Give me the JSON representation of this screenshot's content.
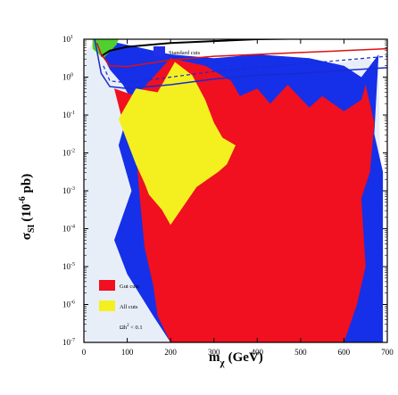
{
  "chart_data": {
    "type": "area",
    "x_axis": {
      "label_main": "m",
      "label_sub": "χ",
      "label_unit": "(GeV)",
      "range": [
        0,
        700
      ],
      "ticks": [
        0,
        100,
        200,
        300,
        400,
        500,
        600,
        700
      ],
      "tick_labels": [
        "0",
        "100",
        "200",
        "300",
        "400",
        "500",
        "600",
        "700"
      ]
    },
    "y_axis": {
      "label_main": "σ",
      "label_sub": "SI",
      "label_paren": "(10",
      "label_sup": "-6",
      "label_unit": " pb)",
      "scale": "log10",
      "range": [
        -7,
        1
      ],
      "ticks": [
        1,
        0,
        -1,
        -2,
        -3,
        -4,
        -5,
        -6,
        -7
      ],
      "tick_labels": [
        {
          "base": "10",
          "exp": "1"
        },
        {
          "base": "10",
          "exp": "0"
        },
        {
          "base": "10",
          "exp": "-1"
        },
        {
          "base": "10",
          "exp": "-2"
        },
        {
          "base": "10",
          "exp": "-3"
        },
        {
          "base": "10",
          "exp": "-4"
        },
        {
          "base": "10",
          "exp": "-5"
        },
        {
          "base": "10",
          "exp": "-6"
        },
        {
          "base": "10",
          "exp": "-7"
        }
      ]
    },
    "legend": {
      "upper": {
        "placement": "top-right",
        "entries": [
          {
            "label": "Standard cuts",
            "color": "#2030e8"
          }
        ]
      },
      "lower": {
        "placement": "bottom-left",
        "entries": [
          {
            "label": "Gut cuts",
            "color": "#f01020"
          },
          {
            "label": "All cuts",
            "color": "#f4f020"
          },
          {
            "label_main": "Ωh",
            "label_sup": "2",
            "label_rest": " < 0.1",
            "color": "#e8eef8"
          }
        ]
      }
    },
    "colors": {
      "light_region": "#e8eef8",
      "blue_region": "#1530e8",
      "red_region": "#f01020",
      "yellow_region": "#f4f020",
      "green_region": "#50d030",
      "black_curve": "#000000",
      "red_curve": "#e01010",
      "blue_curve": "#1a2ad0",
      "dashed_curve": "#1a2ad0"
    },
    "regions": {
      "light": [
        [
          0,
          -7
        ],
        [
          0,
          0.6
        ],
        [
          20,
          0.9
        ],
        [
          60,
          0.8
        ],
        [
          120,
          0.5
        ],
        [
          200,
          0.4
        ],
        [
          300,
          0.3
        ],
        [
          350,
          0.4
        ],
        [
          400,
          0.2
        ],
        [
          500,
          0.3
        ],
        [
          600,
          0.4
        ],
        [
          650,
          0.5
        ],
        [
          680,
          0.3
        ],
        [
          690,
          -7
        ]
      ],
      "blue": [
        [
          25,
          1
        ],
        [
          60,
          0.2
        ],
        [
          90,
          -0.2
        ],
        [
          110,
          -0.6
        ],
        [
          80,
          -1.8
        ],
        [
          110,
          -3
        ],
        [
          70,
          -4.3
        ],
        [
          100,
          -5.2
        ],
        [
          160,
          -6.3
        ],
        [
          200,
          -7
        ],
        [
          690,
          -7
        ],
        [
          690,
          -2.5
        ],
        [
          670,
          -1.5
        ],
        [
          680,
          0.6
        ],
        [
          640,
          0
        ],
        [
          600,
          0.3
        ],
        [
          520,
          0.5
        ],
        [
          400,
          0.6
        ],
        [
          300,
          0.5
        ],
        [
          200,
          0.6
        ],
        [
          120,
          0.8
        ],
        [
          80,
          0.9
        ]
      ],
      "red": [
        [
          70,
          -0.3
        ],
        [
          120,
          -0.5
        ],
        [
          200,
          0.5
        ],
        [
          280,
          0.3
        ],
        [
          340,
          -0.1
        ],
        [
          360,
          -0.5
        ],
        [
          400,
          -0.3
        ],
        [
          430,
          -0.7
        ],
        [
          470,
          -0.2
        ],
        [
          520,
          -0.8
        ],
        [
          550,
          -0.5
        ],
        [
          600,
          -0.9
        ],
        [
          640,
          -0.6
        ],
        [
          650,
          -0.2
        ],
        [
          670,
          -1.2
        ],
        [
          660,
          -2.5
        ],
        [
          640,
          -3.2
        ],
        [
          650,
          -5
        ],
        [
          630,
          -6
        ],
        [
          600,
          -7
        ],
        [
          200,
          -7
        ],
        [
          170,
          -6.3
        ],
        [
          160,
          -5.5
        ],
        [
          140,
          -4.5
        ],
        [
          130,
          -3.3
        ],
        [
          120,
          -2
        ],
        [
          90,
          -1.2
        ]
      ],
      "yellow": [
        [
          80,
          -1.1
        ],
        [
          120,
          -0.3
        ],
        [
          170,
          -0.4
        ],
        [
          210,
          0.4
        ],
        [
          250,
          0.05
        ],
        [
          280,
          -0.6
        ],
        [
          300,
          -1.2
        ],
        [
          320,
          -1.6
        ],
        [
          350,
          -1.8
        ],
        [
          330,
          -2.3
        ],
        [
          310,
          -2.5
        ],
        [
          260,
          -2.9
        ],
        [
          230,
          -3.4
        ],
        [
          200,
          -3.9
        ],
        [
          180,
          -3.5
        ],
        [
          150,
          -3.1
        ],
        [
          140,
          -2.8
        ],
        [
          120,
          -2.3
        ],
        [
          100,
          -1.7
        ]
      ],
      "green": [
        [
          20,
          1
        ],
        [
          20,
          0.75
        ],
        [
          35,
          0.6
        ],
        [
          45,
          0.5
        ],
        [
          75,
          0.85
        ],
        [
          80,
          1
        ]
      ]
    },
    "curves": {
      "black": [
        [
          40,
          0.55
        ],
        [
          60,
          0.7
        ],
        [
          100,
          0.8
        ],
        [
          200,
          0.9
        ],
        [
          300,
          0.95
        ],
        [
          400,
          1
        ],
        [
          700,
          1.05
        ]
      ],
      "red": [
        [
          30,
          0.9
        ],
        [
          40,
          0.6
        ],
        [
          60,
          0.3
        ],
        [
          100,
          0.28
        ],
        [
          200,
          0.45
        ],
        [
          300,
          0.55
        ],
        [
          400,
          0.6
        ],
        [
          500,
          0.65
        ],
        [
          600,
          0.7
        ],
        [
          700,
          0.75
        ]
      ],
      "blue": [
        [
          25,
          1
        ],
        [
          40,
          0.1
        ],
        [
          60,
          -0.25
        ],
        [
          100,
          -0.3
        ],
        [
          200,
          -0.2
        ],
        [
          300,
          -0.05
        ],
        [
          400,
          0.05
        ],
        [
          500,
          0.1
        ],
        [
          600,
          0.18
        ],
        [
          700,
          0.25
        ]
      ],
      "dashed": [
        [
          45,
          0.3
        ],
        [
          60,
          -0.1
        ],
        [
          100,
          -0.15
        ],
        [
          200,
          0
        ],
        [
          300,
          0.15
        ],
        [
          400,
          0.25
        ],
        [
          500,
          0.35
        ],
        [
          600,
          0.45
        ],
        [
          700,
          0.55
        ]
      ]
    }
  }
}
